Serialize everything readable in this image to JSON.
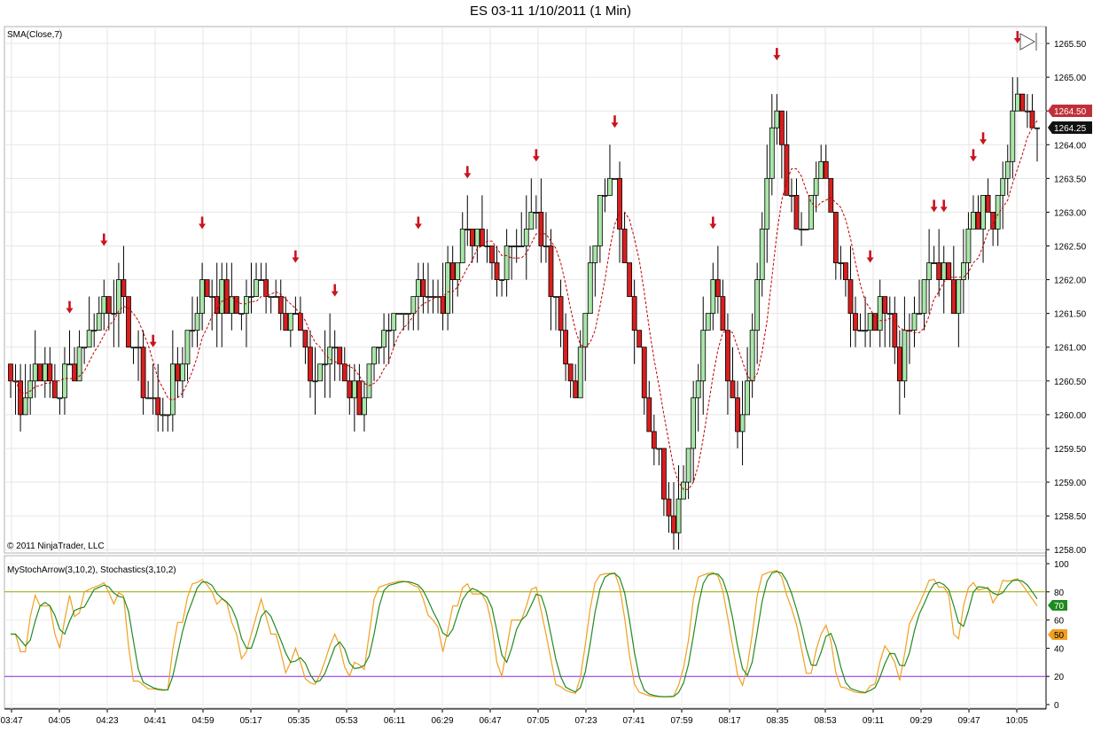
{
  "title": "ES 03-11  1/10/2011 (1 Min)",
  "price_panel": {
    "indicator_label": "SMA(Close,7)",
    "copyright": "© 2011 NinjaTrader, LLC",
    "price_badge_red": "1264.50",
    "price_badge_black": "1264.25"
  },
  "osc_panel": {
    "indicator_label": "MyStochArrow(3,10,2), Stochastics(3,10,2)",
    "badge_green": "70",
    "badge_orange": "50"
  },
  "colors": {
    "up_candle": "#a8e6a8",
    "down_candle": "#d81e1e",
    "sma": "#c00000",
    "arrow": "#c8141e",
    "stoch_d": "#228b22",
    "stoch_k": "#f0a020",
    "level_80": "#9aaa00",
    "level_20": "#8a2be2"
  },
  "chart_data": {
    "type": "candlestick",
    "y_ticks": [
      "1258.00",
      "1258.50",
      "1259.00",
      "1259.50",
      "1260.00",
      "1260.50",
      "1261.00",
      "1261.50",
      "1262.00",
      "1262.50",
      "1263.00",
      "1263.50",
      "1264.00",
      "1264.50",
      "1265.00",
      "1265.50"
    ],
    "ylim": [
      1257.95,
      1265.75
    ],
    "x_ticks": [
      "03:47",
      "04:05",
      "04:23",
      "04:41",
      "04:59",
      "05:17",
      "05:35",
      "05:53",
      "06:11",
      "06:29",
      "06:47",
      "07:05",
      "07:23",
      "07:41",
      "07:59",
      "08:17",
      "08:35",
      "08:53",
      "09:11",
      "09:29",
      "09:47",
      "10:05"
    ],
    "close_path": [
      1260.5,
      1260.25,
      1260.5,
      1260.75,
      1260.5,
      1260.25,
      1260.5,
      1260.75,
      1261.0,
      1261.25,
      1261.5,
      1261.75,
      1261.75,
      1261.5,
      1261.0,
      1260.5,
      1260.25,
      1260.0,
      1260.25,
      1260.5,
      1261.0,
      1261.5,
      1261.75,
      1261.75,
      1261.75,
      1261.5,
      1261.5,
      1261.75,
      1261.75,
      1262.0,
      1262.0,
      1261.75,
      1261.5,
      1261.25,
      1260.75,
      1260.5,
      1260.75,
      1261.0,
      1260.75,
      1260.5,
      1260.25,
      1260.5,
      1260.75,
      1261.0,
      1261.25,
      1261.5,
      1261.75,
      1262.0,
      1261.75,
      1261.5,
      1261.75,
      1262.25,
      1262.75,
      1262.75,
      1262.5,
      1262.25,
      1262.0,
      1262.25,
      1262.5,
      1262.75,
      1263.0,
      1262.5,
      1262.0,
      1261.5,
      1261.0,
      1260.5,
      1261.25,
      1262.5,
      1263.5,
      1263.75,
      1263.0,
      1262.0,
      1261.0,
      1260.25,
      1259.75,
      1259.0,
      1258.5,
      1258.75,
      1259.75,
      1260.5,
      1261.5,
      1261.75,
      1261.0,
      1260.25,
      1259.75,
      1261.0,
      1262.5,
      1263.75,
      1264.75,
      1263.5,
      1262.75,
      1262.75,
      1263.0,
      1263.75,
      1263.0,
      1262.25,
      1261.75,
      1261.25,
      1261.0,
      1261.25,
      1261.5,
      1261.25,
      1260.75,
      1261.0,
      1261.5,
      1261.75,
      1262.25,
      1262.0,
      1261.75,
      1262.0,
      1262.5,
      1263.0,
      1263.25,
      1262.75,
      1263.5,
      1264.25,
      1264.75,
      1264.5,
      1264.25
    ]
  }
}
